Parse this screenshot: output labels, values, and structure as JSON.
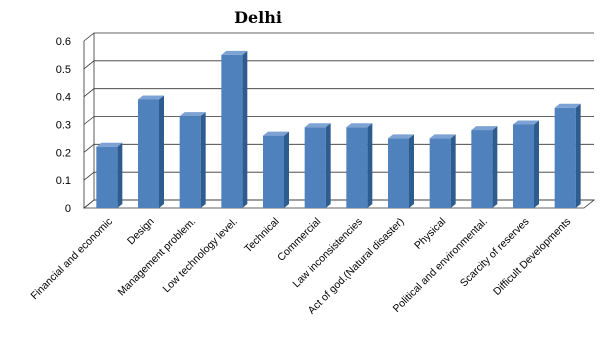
{
  "chart_data": {
    "type": "bar",
    "title": "Delhi",
    "xlabel": "",
    "ylabel": "",
    "ylim": [
      0,
      0.6
    ],
    "yticks": [
      "0",
      "0.1",
      "0.2",
      "0.3",
      "0.4",
      "0.5",
      "0.6"
    ],
    "grid": true,
    "three_d": true,
    "bar_color": "#4F81BD",
    "bar_side_color": "#2F5C8F",
    "bar_top_color": "#7DA2D4",
    "categories": [
      "Financial and economic",
      "Design",
      "Management problem.",
      "Low technology level.",
      "Technical",
      "Commercial",
      "Law inconsistencies",
      "Act of god.(Natural disaster)",
      "Physical",
      "Political and environmental.",
      "Scarcity of reserves",
      "Difficult Developments"
    ],
    "values": [
      0.22,
      0.39,
      0.33,
      0.55,
      0.26,
      0.29,
      0.29,
      0.25,
      0.25,
      0.28,
      0.3,
      0.36
    ]
  }
}
